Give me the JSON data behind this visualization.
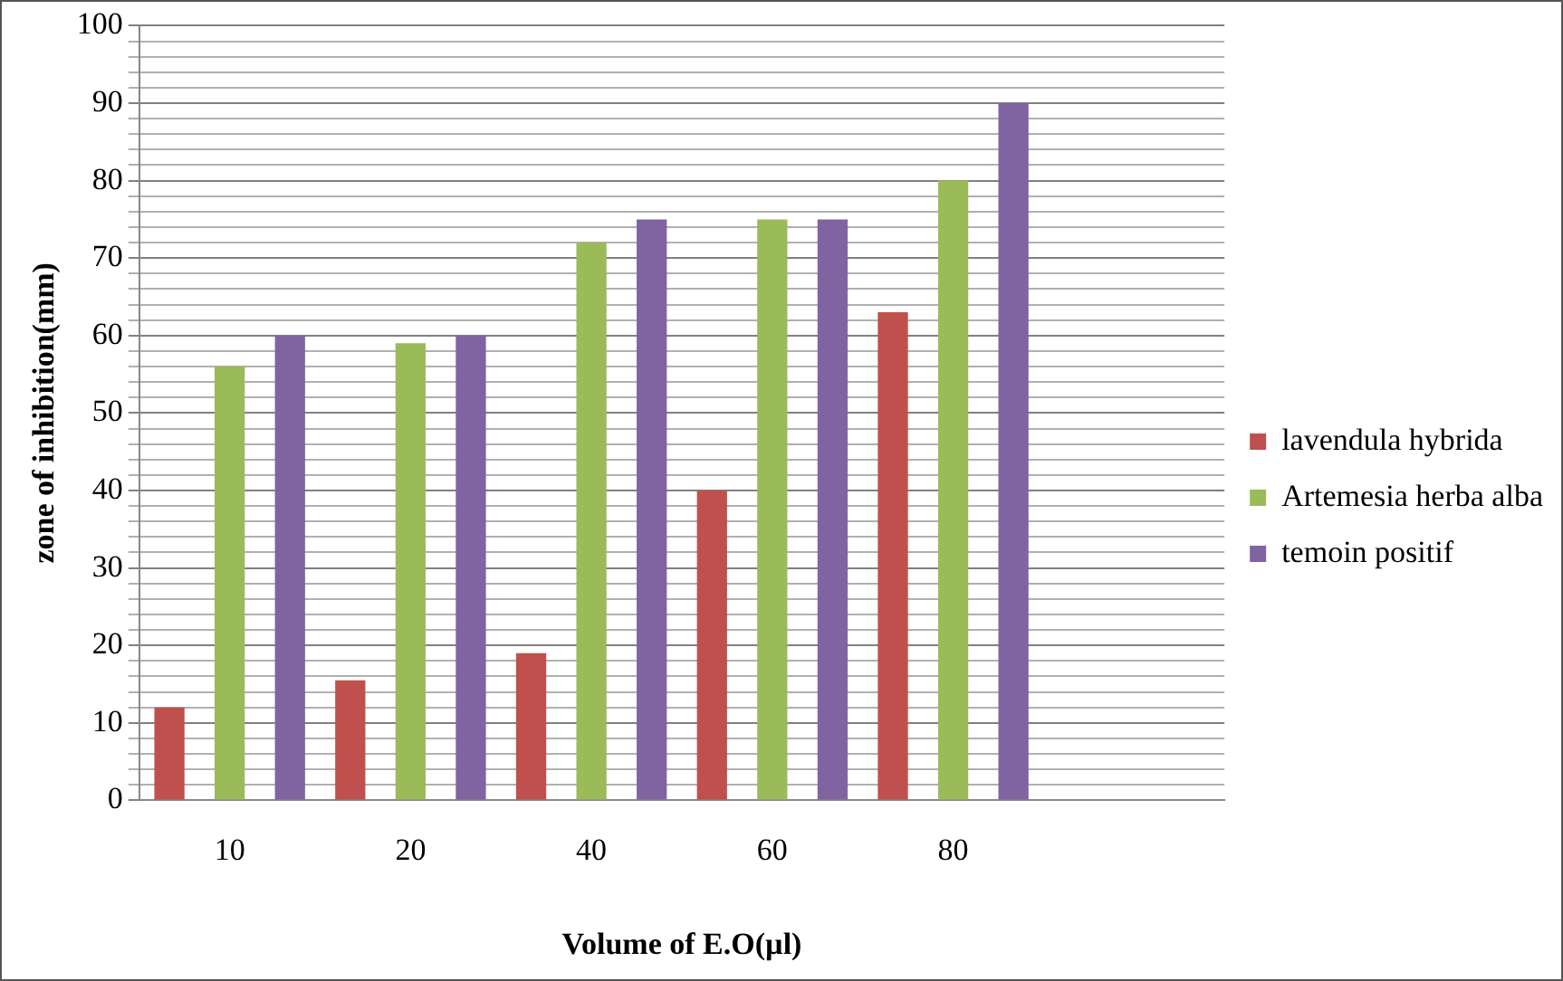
{
  "chart_data": {
    "type": "bar",
    "xlabel": "Volume of E.O(µl)",
    "ylabel": "zone of inhibition(mm)",
    "categories": [
      "10",
      "20",
      "40",
      "60",
      "80",
      null
    ],
    "series": [
      {
        "name": "lavendula hybrida",
        "color": "#c0504d",
        "values": [
          12,
          15.5,
          19,
          40,
          63,
          null
        ]
      },
      {
        "name": "Artemesia herba alba",
        "color": "#9bbb59",
        "values": [
          56,
          59,
          72,
          75,
          80,
          null
        ]
      },
      {
        "name": "temoin positif",
        "color": "#8064a2",
        "values": [
          60,
          60,
          75,
          75,
          90,
          null
        ]
      }
    ],
    "ylim": [
      0,
      100
    ],
    "yticks": [
      0,
      {
        "value": 2,
        "label": null
      },
      {
        "value": 4,
        "label": null
      },
      {
        "value": 6,
        "label": null
      },
      {
        "value": 8,
        "label": null
      },
      10,
      {
        "value": 12,
        "label": null
      },
      {
        "value": 14,
        "label": null
      },
      {
        "value": 16,
        "label": null
      },
      {
        "value": 18,
        "label": null
      },
      20,
      {
        "value": 22,
        "label": null
      },
      {
        "value": 24,
        "label": null
      },
      {
        "value": 26,
        "label": null
      },
      {
        "value": 28,
        "label": null
      },
      30,
      {
        "value": 32,
        "label": null
      },
      {
        "value": 34,
        "label": null
      },
      {
        "value": 36,
        "label": null
      },
      {
        "value": 38,
        "label": null
      },
      40,
      {
        "value": 42,
        "label": null
      },
      {
        "value": 44,
        "label": null
      },
      {
        "value": 46,
        "label": null
      },
      {
        "value": 48,
        "label": null
      },
      50,
      {
        "value": 52,
        "label": null
      },
      {
        "value": 54,
        "label": null
      },
      {
        "value": 56,
        "label": null
      },
      {
        "value": 58,
        "label": null
      },
      60,
      {
        "value": 62,
        "label": null
      },
      {
        "value": 64,
        "label": null
      },
      {
        "value": 66,
        "label": null
      },
      {
        "value": 68,
        "label": null
      },
      70,
      {
        "value": 72,
        "label": null
      },
      {
        "value": 74,
        "label": null
      },
      {
        "value": 76,
        "label": null
      },
      {
        "value": 78,
        "label": null
      },
      80,
      {
        "value": 82,
        "label": null
      },
      {
        "value": 84,
        "label": null
      },
      {
        "value": 86,
        "label": null
      },
      {
        "value": 88,
        "label": null
      },
      90,
      {
        "value": 92,
        "label": null
      },
      {
        "value": 94,
        "label": null
      },
      {
        "value": 96,
        "label": null
      },
      {
        "value": 98,
        "label": null
      },
      100
    ],
    "grid": "y",
    "legend": "right"
  }
}
